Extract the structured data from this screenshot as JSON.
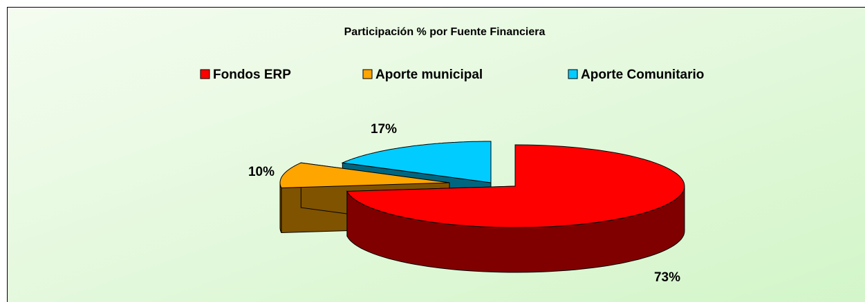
{
  "chart_data": {
    "type": "pie3d",
    "title": "Participación % por Fuente Financiera",
    "categories": [
      "Fondos ERP",
      "Aporte municipal",
      "Aporte Comunitario"
    ],
    "values": [
      73,
      10,
      17
    ],
    "value_labels": [
      "73%",
      "10%",
      "17%"
    ],
    "colors": [
      "#ff0000",
      "#ffa500",
      "#00ccff"
    ],
    "legend": "top"
  }
}
